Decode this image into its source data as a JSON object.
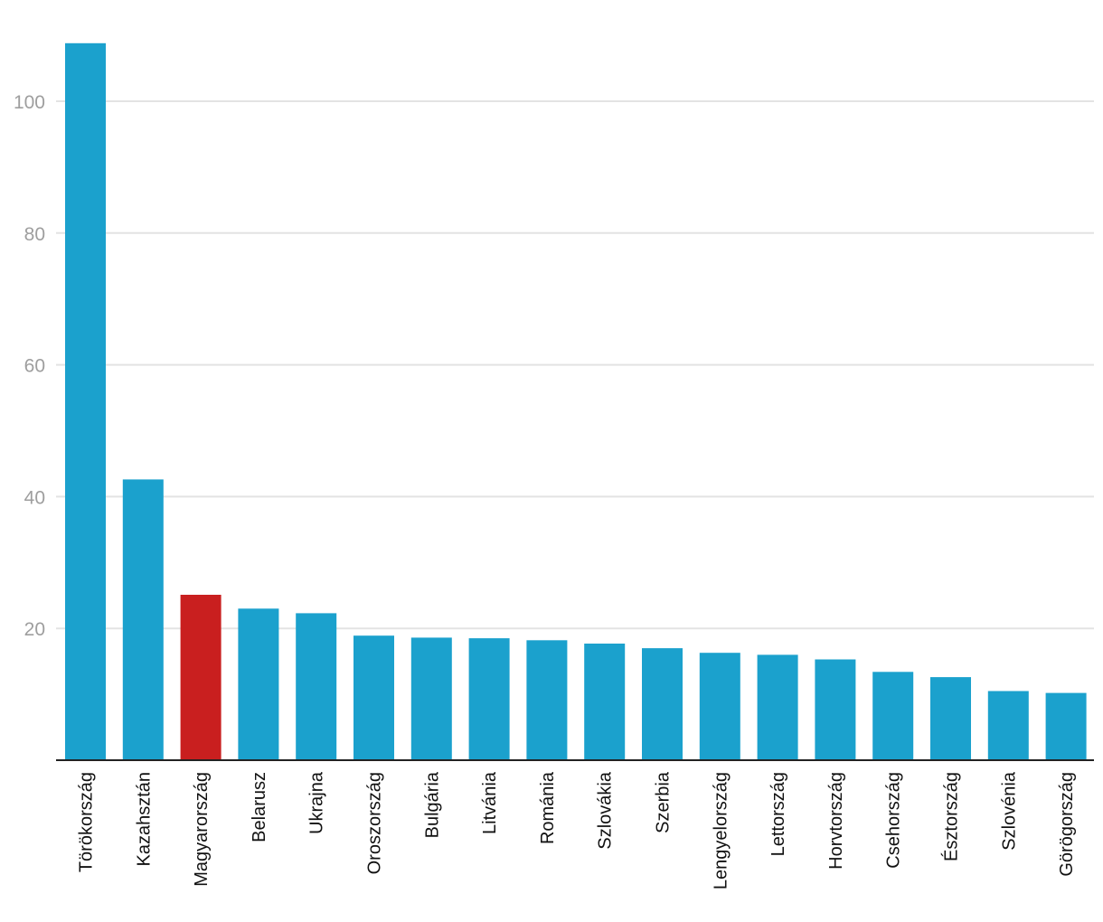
{
  "chart_data": {
    "type": "bar",
    "title": "",
    "xlabel": "",
    "ylabel": "",
    "ylim": [
      0,
      109
    ],
    "yticks": [
      20,
      40,
      60,
      80,
      100
    ],
    "grid": true,
    "legend": "none",
    "categories": [
      "Törökország",
      "Kazahsztán",
      "Magyarország",
      "Belarusz",
      "Ukrajna",
      "Oroszország",
      "Bulgária",
      "Litvánia",
      "Románia",
      "Szlovákia",
      "Szerbia",
      "Lengyelország",
      "Lettország",
      "Horvtország",
      "Csehország",
      "Észtország",
      "Szlovénia",
      "Görögország"
    ],
    "values": [
      108.8,
      42.6,
      25.1,
      23.0,
      22.3,
      18.9,
      18.6,
      18.5,
      18.2,
      17.7,
      17.0,
      16.3,
      16.0,
      15.3,
      13.4,
      12.6,
      10.5,
      10.2
    ],
    "colors": {
      "default": "#1ba1cd",
      "highlight": "#c91f1f",
      "highlight_category": "Magyarország"
    }
  }
}
